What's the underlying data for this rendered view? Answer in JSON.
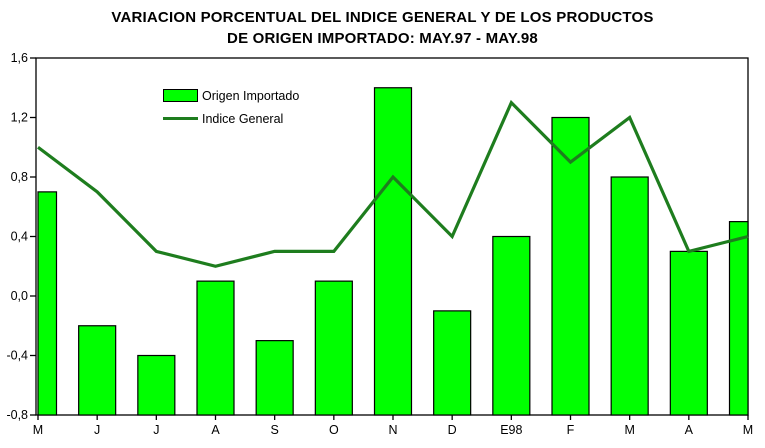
{
  "chart_data": {
    "type": "bar",
    "combo": "bar+line",
    "title_lines": [
      "VARIACION PORCENTUAL DEL INDICE GENERAL Y DE LOS PRODUCTOS",
      "DE ORIGEN IMPORTADO: MAY.97 - MAY.98"
    ],
    "categories": [
      "M",
      "J",
      "J",
      "A",
      "S",
      "O",
      "N",
      "D",
      "E98",
      "F",
      "M",
      "A",
      "M"
    ],
    "series": [
      {
        "name": "Origen Importado",
        "type": "bar",
        "values": [
          0.7,
          -0.2,
          -0.4,
          0.1,
          -0.3,
          0.1,
          1.4,
          -0.1,
          0.4,
          1.2,
          0.8,
          0.3,
          0.5
        ]
      },
      {
        "name": "Indice General",
        "type": "line",
        "values": [
          1.0,
          0.7,
          0.3,
          0.2,
          0.3,
          0.3,
          0.8,
          0.4,
          1.3,
          0.9,
          1.2,
          0.3,
          0.4
        ]
      }
    ],
    "xlabel": "",
    "ylabel": "",
    "ylim": [
      -0.8,
      1.6
    ],
    "ytick_values": [
      1.6,
      1.2,
      0.8,
      0.4,
      0.0,
      -0.4,
      -0.8
    ],
    "ytick_labels": [
      "1,6",
      "1,2",
      "0,8",
      "0,4",
      "0,0",
      "-0,4",
      "-0,8"
    ],
    "bar_baseline": -0.8,
    "grid": false,
    "legend_position": "upper-left-inside",
    "colors": {
      "bar_fill": "#00FF00",
      "bar_border": "#000000",
      "line": "#1E7D1E",
      "axis": "#000000",
      "background": "#FFFFFF",
      "text": "#000000"
    }
  }
}
